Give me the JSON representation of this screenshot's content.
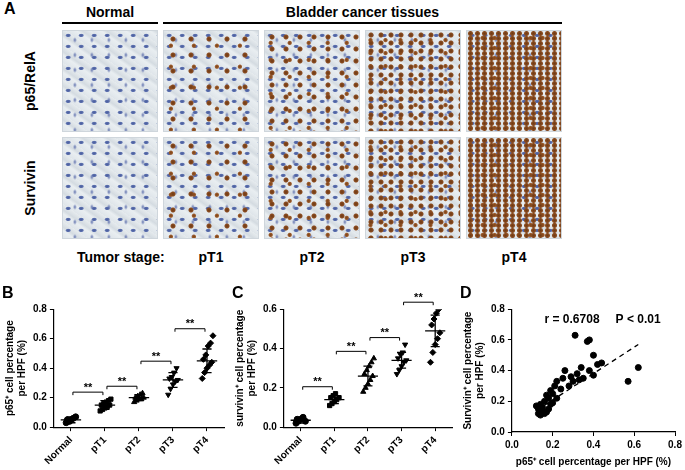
{
  "panel_a": {
    "letter": "A",
    "column_groups": [
      {
        "label": "Normal",
        "columns": 1
      },
      {
        "label": "Bladder cancer tissues",
        "columns": 4
      }
    ],
    "rows": [
      "p65/RelA",
      "Survivin"
    ],
    "stage_label": "Tumor stage:",
    "stages": [
      "pT1",
      "pT2",
      "pT3",
      "pT4"
    ]
  },
  "chart_data": [
    {
      "type": "dot",
      "title": "B",
      "y_label": [
        "p65⁺ cell percentage",
        "per HPF (%)"
      ],
      "ylim": [
        0,
        0.8
      ],
      "yticks": [
        {
          "value": 0,
          "label": "0.0"
        },
        0.2,
        0.4,
        0.6,
        0.8
      ],
      "grid": false,
      "series": [
        {
          "name": "Normal",
          "marker": "circle",
          "color": "#000000",
          "values": [
            0.03,
            0.04,
            0.05,
            0.06,
            0.07,
            0.05,
            0.04
          ],
          "mean": 0.05,
          "sd": 0.02
        },
        {
          "name": "pT1",
          "marker": "square",
          "color": "#000000",
          "values": [
            0.11,
            0.12,
            0.13,
            0.14,
            0.15,
            0.15,
            0.16,
            0.17,
            0.18,
            0.19
          ],
          "mean": 0.15,
          "sd": 0.03
        },
        {
          "name": "pT2",
          "marker": "triangle",
          "color": "#000000",
          "values": [
            0.17,
            0.18,
            0.19,
            0.19,
            0.2,
            0.2,
            0.21,
            0.22,
            0.23
          ],
          "mean": 0.2,
          "sd": 0.02
        },
        {
          "name": "pT3",
          "marker": "triangle-down",
          "color": "#000000",
          "values": [
            0.22,
            0.26,
            0.29,
            0.31,
            0.32,
            0.33,
            0.34,
            0.37,
            0.4
          ],
          "mean": 0.32,
          "sd": 0.05
        },
        {
          "name": "pT4",
          "marker": "diamond",
          "color": "#000000",
          "values": [
            0.33,
            0.37,
            0.4,
            0.42,
            0.44,
            0.46,
            0.49,
            0.55,
            0.57,
            0.62
          ],
          "mean": 0.45,
          "sd": 0.08
        }
      ],
      "significance": [
        {
          "between": [
            "Normal",
            "pT1"
          ],
          "label": "**"
        },
        {
          "between": [
            "pT1",
            "pT2"
          ],
          "label": "**"
        },
        {
          "between": [
            "pT2",
            "pT3"
          ],
          "label": "**"
        },
        {
          "between": [
            "pT3",
            "pT4"
          ],
          "label": "**"
        }
      ]
    },
    {
      "type": "dot",
      "title": "C",
      "y_label": [
        "survivin⁺ cell percentage",
        "per HPF (%)"
      ],
      "ylim": [
        0,
        0.6
      ],
      "yticks": [
        {
          "value": 0,
          "label": "0.0"
        },
        0.2,
        0.4,
        0.6
      ],
      "grid": false,
      "series": [
        {
          "name": "Normal",
          "marker": "circle",
          "color": "#000000",
          "values": [
            0.02,
            0.03,
            0.04,
            0.05,
            0.03,
            0.04
          ],
          "mean": 0.035,
          "sd": 0.015
        },
        {
          "name": "pT1",
          "marker": "square",
          "color": "#000000",
          "values": [
            0.11,
            0.12,
            0.13,
            0.14,
            0.15,
            0.15,
            0.16,
            0.17
          ],
          "mean": 0.14,
          "sd": 0.02
        },
        {
          "name": "pT2",
          "marker": "triangle",
          "color": "#000000",
          "values": [
            0.18,
            0.2,
            0.22,
            0.24,
            0.26,
            0.27,
            0.29,
            0.31,
            0.33,
            0.35
          ],
          "mean": 0.26,
          "sd": 0.05
        },
        {
          "name": "pT3",
          "marker": "triangle-down",
          "color": "#000000",
          "values": [
            0.27,
            0.29,
            0.31,
            0.33,
            0.34,
            0.35,
            0.37,
            0.38,
            0.42
          ],
          "mean": 0.34,
          "sd": 0.04
        },
        {
          "name": "pT4",
          "marker": "diamond",
          "color": "#000000",
          "values": [
            0.33,
            0.38,
            0.42,
            0.45,
            0.48,
            0.52,
            0.55,
            0.58,
            0.6
          ],
          "mean": 0.49,
          "sd": 0.08
        }
      ],
      "significance": [
        {
          "between": [
            "Normal",
            "pT1"
          ],
          "label": "**"
        },
        {
          "between": [
            "pT1",
            "pT2"
          ],
          "label": "**"
        },
        {
          "between": [
            "pT2",
            "pT3"
          ],
          "label": "**"
        },
        {
          "between": [
            "pT3",
            "pT4"
          ],
          "label": "**"
        }
      ]
    },
    {
      "type": "scatter",
      "title": "D",
      "x_label": "p65⁺ cell percentage per HPF (%)",
      "y_label": [
        "Survivin⁺ cell percentage",
        "per HPF (%)"
      ],
      "xlim": [
        0,
        0.8
      ],
      "xticks": [
        {
          "value": 0,
          "label": "0.0"
        },
        0.2,
        0.4,
        0.6,
        0.8
      ],
      "ylim": [
        0,
        0.8
      ],
      "yticks": [
        {
          "value": 0,
          "label": "0.0"
        },
        0.2,
        0.4,
        0.6,
        0.8
      ],
      "grid": false,
      "annotations": [
        "r = 0.6708",
        "P < 0.01"
      ],
      "series": [
        {
          "type": "scatter",
          "marker": "circle",
          "color": "#000000",
          "x": [
            0.12,
            0.13,
            0.13,
            0.14,
            0.14,
            0.15,
            0.15,
            0.16,
            0.16,
            0.17,
            0.17,
            0.18,
            0.18,
            0.19,
            0.19,
            0.2,
            0.2,
            0.21,
            0.22,
            0.22,
            0.24,
            0.25,
            0.26,
            0.28,
            0.29,
            0.3,
            0.31,
            0.32,
            0.33,
            0.34,
            0.35,
            0.37,
            0.38,
            0.38,
            0.4,
            0.4,
            0.42,
            0.44,
            0.57,
            0.62
          ],
          "values": [
            0.17,
            0.15,
            0.12,
            0.18,
            0.11,
            0.14,
            0.16,
            0.12,
            0.2,
            0.13,
            0.24,
            0.15,
            0.22,
            0.18,
            0.27,
            0.19,
            0.25,
            0.3,
            0.22,
            0.33,
            0.28,
            0.35,
            0.4,
            0.3,
            0.36,
            0.33,
            0.63,
            0.38,
            0.34,
            0.42,
            0.35,
            0.59,
            0.6,
            0.4,
            0.5,
            0.37,
            0.44,
            0.45,
            0.33,
            0.42
          ]
        },
        {
          "type": "line",
          "line_style": "dashed",
          "color": "#000000",
          "x": [
            0.12,
            0.62
          ],
          "values": [
            0.14,
            0.57
          ]
        }
      ]
    }
  ]
}
